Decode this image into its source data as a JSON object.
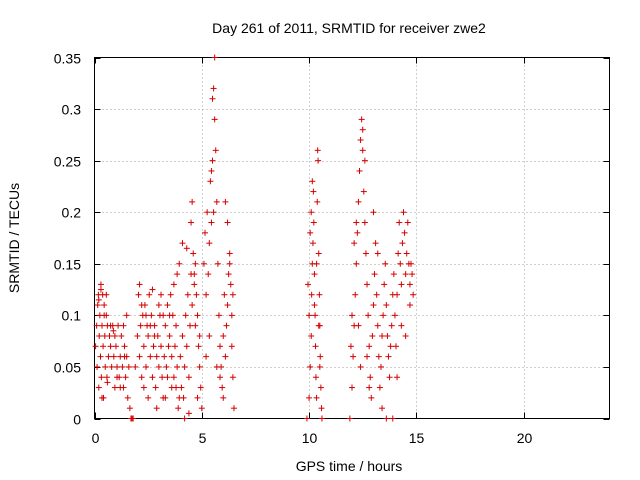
{
  "chart_data": {
    "type": "scatter",
    "title": "Day 261 of 2011, SRMTID for receiver zwe2",
    "xlabel": "GPS time / hours",
    "ylabel": "SRMTID / TECUs",
    "xlim": [
      0,
      24
    ],
    "ylim": [
      0,
      0.35
    ],
    "grid": true,
    "marker": "+",
    "x_ticks": [
      0,
      5,
      10,
      15,
      20
    ],
    "x_tick_labels": [
      "0",
      "5",
      "10",
      "15",
      "20"
    ],
    "y_ticks": [
      0,
      0.05,
      0.1,
      0.15,
      0.2,
      0.25,
      0.3,
      0.35
    ],
    "y_tick_labels": [
      "0",
      "0.05",
      "0.1",
      "0.15",
      "0.2",
      "0.25",
      "0.3",
      "0.35"
    ],
    "series": [
      {
        "name": "zwe2",
        "color": "#d40000",
        "points": [
          [
            0.05,
            0.07
          ],
          [
            0.1,
            0.09
          ],
          [
            0.12,
            0.05
          ],
          [
            0.15,
            0.11
          ],
          [
            0.18,
            0.12
          ],
          [
            0.2,
            0.03
          ],
          [
            0.22,
            0.08
          ],
          [
            0.25,
            0.1
          ],
          [
            0.28,
            0.06
          ],
          [
            0.3,
            0.13
          ],
          [
            0.32,
            0.04
          ],
          [
            0.35,
            0.09
          ],
          [
            0.38,
            0.12
          ],
          [
            0.4,
            0.07
          ],
          [
            0.42,
            0.02
          ],
          [
            0.45,
            0.11
          ],
          [
            0.48,
            0.08
          ],
          [
            0.5,
            0.05
          ],
          [
            0.55,
            0.1
          ],
          [
            0.58,
            0.04
          ],
          [
            0.6,
            0.09
          ],
          [
            0.65,
            0.06
          ],
          [
            0.7,
            0.08
          ],
          [
            0.75,
            0.07
          ],
          [
            0.8,
            0.05
          ],
          [
            0.85,
            0.09
          ],
          [
            0.9,
            0.06
          ],
          [
            0.95,
            0.08
          ],
          [
            1.0,
            0.07
          ],
          [
            1.05,
            0.05
          ],
          [
            1.1,
            0.09
          ],
          [
            1.15,
            0.04
          ],
          [
            1.2,
            0.06
          ],
          [
            1.25,
            0.08
          ],
          [
            1.3,
            0.05
          ],
          [
            1.35,
            0.03
          ],
          [
            1.4,
            0.07
          ],
          [
            1.45,
            0.04
          ],
          [
            1.5,
            0.06
          ],
          [
            1.55,
            0.02
          ],
          [
            1.6,
            0.05
          ],
          [
            1.65,
            0.01
          ],
          [
            1.7,
            0.0
          ],
          [
            1.75,
            0.0
          ],
          [
            1.8,
            0.0
          ],
          [
            0.2,
            0.115
          ],
          [
            0.3,
            0.125
          ],
          [
            0.45,
            0.1
          ],
          [
            0.55,
            0.12
          ],
          [
            0.35,
            0.02
          ],
          [
            0.6,
            0.035
          ],
          [
            0.75,
            0.09
          ],
          [
            0.88,
            0.085
          ],
          [
            1.05,
            0.04
          ],
          [
            1.2,
            0.03
          ],
          [
            1.4,
            0.06
          ],
          [
            1.5,
            0.1
          ],
          [
            1.35,
            0.09
          ],
          [
            0.95,
            0.03
          ],
          [
            1.9,
            0.05
          ],
          [
            2.0,
            0.08
          ],
          [
            2.05,
            0.12
          ],
          [
            2.1,
            0.06
          ],
          [
            2.15,
            0.09
          ],
          [
            2.2,
            0.04
          ],
          [
            2.25,
            0.1
          ],
          [
            2.3,
            0.07
          ],
          [
            2.35,
            0.11
          ],
          [
            2.4,
            0.05
          ],
          [
            2.45,
            0.09
          ],
          [
            2.5,
            0.08
          ],
          [
            2.55,
            0.12
          ],
          [
            2.6,
            0.06
          ],
          [
            2.65,
            0.1
          ],
          [
            2.7,
            0.04
          ],
          [
            2.75,
            0.07
          ],
          [
            2.8,
            0.09
          ],
          [
            2.85,
            0.03
          ],
          [
            2.9,
            0.06
          ],
          [
            2.95,
            0.08
          ],
          [
            3.0,
            0.05
          ],
          [
            3.05,
            0.1
          ],
          [
            3.1,
            0.07
          ],
          [
            3.15,
            0.04
          ],
          [
            3.2,
            0.02
          ],
          [
            3.25,
            0.06
          ],
          [
            3.3,
            0.09
          ],
          [
            3.35,
            0.05
          ],
          [
            3.4,
            0.11
          ],
          [
            3.45,
            0.07
          ],
          [
            3.5,
            0.08
          ],
          [
            3.55,
            0.12
          ],
          [
            3.6,
            0.06
          ],
          [
            3.65,
            0.1
          ],
          [
            3.7,
            0.04
          ],
          [
            3.75,
            0.07
          ],
          [
            3.8,
            0.03
          ],
          [
            3.85,
            0.05
          ],
          [
            3.9,
            0.01
          ],
          [
            3.95,
            0.02
          ],
          [
            2.1,
            0.13
          ],
          [
            2.3,
            0.03
          ],
          [
            2.5,
            0.02
          ],
          [
            2.7,
            0.125
          ],
          [
            2.9,
            0.01
          ],
          [
            3.1,
            0.12
          ],
          [
            3.3,
            0.02
          ],
          [
            3.5,
            0.1
          ],
          [
            3.7,
            0.13
          ],
          [
            3.85,
            0.14
          ],
          [
            3.95,
            0.15
          ],
          [
            2.2,
            0.11
          ],
          [
            2.4,
            0.1
          ],
          [
            2.6,
            0.09
          ],
          [
            2.8,
            0.08
          ],
          [
            3.0,
            0.11
          ],
          [
            3.2,
            0.1
          ],
          [
            3.4,
            0.04
          ],
          [
            3.6,
            0.03
          ],
          [
            3.8,
            0.09
          ],
          [
            4.0,
            0.06
          ],
          [
            4.05,
            0.03
          ],
          [
            4.1,
            0.08
          ],
          [
            4.15,
            0.02
          ],
          [
            4.2,
            0.05
          ],
          [
            4.25,
            0.1
          ],
          [
            4.3,
            0.07
          ],
          [
            4.35,
            0.12
          ],
          [
            4.4,
            0.04
          ],
          [
            4.45,
            0.09
          ],
          [
            4.5,
            0.14
          ],
          [
            4.55,
            0.11
          ],
          [
            4.6,
            0.16
          ],
          [
            4.65,
            0.13
          ],
          [
            4.7,
            0.15
          ],
          [
            4.75,
            0.12
          ],
          [
            4.8,
            0.1
          ],
          [
            4.85,
            0.07
          ],
          [
            4.9,
            0.05
          ],
          [
            4.95,
            0.03
          ],
          [
            5.0,
            0.01
          ],
          [
            4.1,
            0.17
          ],
          [
            4.3,
            0.165
          ],
          [
            4.5,
            0.19
          ],
          [
            4.55,
            0.21
          ],
          [
            4.65,
            0.14
          ],
          [
            4.8,
            0.02
          ],
          [
            4.4,
            0.005
          ],
          [
            4.2,
            0.0
          ],
          [
            4.7,
            0.09
          ],
          [
            4.9,
            0.08
          ],
          [
            5.1,
            0.15
          ],
          [
            5.15,
            0.18
          ],
          [
            5.2,
            0.12
          ],
          [
            5.25,
            0.2
          ],
          [
            5.3,
            0.14
          ],
          [
            5.35,
            0.17
          ],
          [
            5.4,
            0.23
          ],
          [
            5.45,
            0.19
          ],
          [
            5.5,
            0.25
          ],
          [
            5.55,
            0.32
          ],
          [
            5.6,
            0.35
          ],
          [
            5.65,
            0.26
          ],
          [
            5.7,
            0.21
          ],
          [
            5.75,
            0.15
          ],
          [
            5.8,
            0.1
          ],
          [
            5.85,
            0.07
          ],
          [
            5.9,
            0.05
          ],
          [
            5.95,
            0.03
          ],
          [
            6.0,
            0.08
          ],
          [
            6.05,
            0.12
          ],
          [
            6.1,
            0.06
          ],
          [
            6.15,
            0.09
          ],
          [
            6.2,
            0.11
          ],
          [
            6.25,
            0.14
          ],
          [
            6.3,
            0.16
          ],
          [
            6.35,
            0.13
          ],
          [
            6.4,
            0.07
          ],
          [
            6.45,
            0.04
          ],
          [
            6.5,
            0.01
          ],
          [
            5.2,
            0.06
          ],
          [
            5.35,
            0.08
          ],
          [
            5.5,
            0.31
          ],
          [
            5.6,
            0.29
          ],
          [
            5.45,
            0.24
          ],
          [
            5.55,
            0.2
          ],
          [
            5.7,
            0.05
          ],
          [
            5.85,
            0.04
          ],
          [
            6.0,
            0.02
          ],
          [
            6.1,
            0.21
          ],
          [
            6.2,
            0.19
          ],
          [
            6.3,
            0.15
          ],
          [
            6.4,
            0.1
          ],
          [
            6.45,
            0.12
          ],
          [
            9.9,
            0.0
          ],
          [
            10.0,
            0.02
          ],
          [
            10.05,
            0.05
          ],
          [
            10.1,
            0.08
          ],
          [
            10.12,
            0.12
          ],
          [
            10.15,
            0.15
          ],
          [
            10.18,
            0.17
          ],
          [
            10.2,
            0.22
          ],
          [
            10.22,
            0.19
          ],
          [
            10.25,
            0.14
          ],
          [
            10.28,
            0.1
          ],
          [
            10.3,
            0.07
          ],
          [
            10.32,
            0.04
          ],
          [
            10.35,
            0.02
          ],
          [
            10.38,
            0.21
          ],
          [
            10.4,
            0.26
          ],
          [
            10.42,
            0.25
          ],
          [
            10.45,
            0.16
          ],
          [
            10.48,
            0.12
          ],
          [
            10.5,
            0.09
          ],
          [
            10.52,
            0.06
          ],
          [
            10.55,
            0.03
          ],
          [
            10.58,
            0.01
          ],
          [
            10.6,
            0.0
          ],
          [
            10.05,
            0.18
          ],
          [
            10.1,
            0.2
          ],
          [
            10.15,
            0.23
          ],
          [
            10.25,
            0.11
          ],
          [
            10.35,
            0.15
          ],
          [
            10.45,
            0.09
          ],
          [
            10.5,
            0.05
          ],
          [
            9.95,
            0.13
          ],
          [
            10.0,
            0.1
          ],
          [
            11.9,
            0.0
          ],
          [
            12.0,
            0.03
          ],
          [
            12.05,
            0.06
          ],
          [
            12.1,
            0.09
          ],
          [
            12.15,
            0.12
          ],
          [
            12.2,
            0.15
          ],
          [
            12.25,
            0.18
          ],
          [
            12.3,
            0.21
          ],
          [
            12.35,
            0.24
          ],
          [
            12.4,
            0.27
          ],
          [
            12.45,
            0.29
          ],
          [
            12.5,
            0.26
          ],
          [
            12.55,
            0.22
          ],
          [
            12.6,
            0.19
          ],
          [
            12.65,
            0.16
          ],
          [
            12.7,
            0.13
          ],
          [
            12.75,
            0.1
          ],
          [
            12.8,
            0.07
          ],
          [
            12.85,
            0.04
          ],
          [
            12.9,
            0.02
          ],
          [
            12.95,
            0.08
          ],
          [
            13.0,
            0.11
          ],
          [
            13.05,
            0.14
          ],
          [
            13.1,
            0.17
          ],
          [
            13.15,
            0.12
          ],
          [
            13.2,
            0.09
          ],
          [
            13.25,
            0.06
          ],
          [
            13.3,
            0.03
          ],
          [
            13.35,
            0.05
          ],
          [
            13.4,
            0.08
          ],
          [
            13.45,
            0.1
          ],
          [
            13.5,
            0.13
          ],
          [
            13.55,
            0.15
          ],
          [
            13.6,
            0.11
          ],
          [
            13.65,
            0.08
          ],
          [
            13.7,
            0.06
          ],
          [
            13.75,
            0.04
          ],
          [
            13.8,
            0.07
          ],
          [
            13.85,
            0.09
          ],
          [
            13.9,
            0.12
          ],
          [
            13.95,
            0.14
          ],
          [
            14.0,
            0.1
          ],
          [
            14.05,
            0.07
          ],
          [
            14.1,
            0.12
          ],
          [
            14.15,
            0.16
          ],
          [
            14.2,
            0.19
          ],
          [
            14.25,
            0.15
          ],
          [
            14.3,
            0.13
          ],
          [
            14.35,
            0.17
          ],
          [
            14.4,
            0.2
          ],
          [
            14.45,
            0.18
          ],
          [
            14.5,
            0.14
          ],
          [
            14.55,
            0.16
          ],
          [
            14.6,
            0.19
          ],
          [
            14.65,
            0.15
          ],
          [
            14.7,
            0.13
          ],
          [
            14.75,
            0.15
          ],
          [
            14.8,
            0.14
          ],
          [
            14.85,
            0.12
          ],
          [
            12.1,
            0.17
          ],
          [
            12.2,
            0.19
          ],
          [
            12.3,
            0.09
          ],
          [
            12.4,
            0.05
          ],
          [
            12.5,
            0.28
          ],
          [
            12.6,
            0.25
          ],
          [
            12.7,
            0.06
          ],
          [
            12.8,
            0.03
          ],
          [
            13.0,
            0.2
          ],
          [
            13.2,
            0.16
          ],
          [
            13.4,
            0.01
          ],
          [
            13.6,
            0.0
          ],
          [
            13.9,
            0.0
          ],
          [
            14.1,
            0.04
          ],
          [
            14.3,
            0.09
          ],
          [
            14.5,
            0.08
          ],
          [
            14.7,
            0.11
          ],
          [
            12.0,
            0.1
          ],
          [
            11.95,
            0.07
          ]
        ]
      }
    ]
  }
}
